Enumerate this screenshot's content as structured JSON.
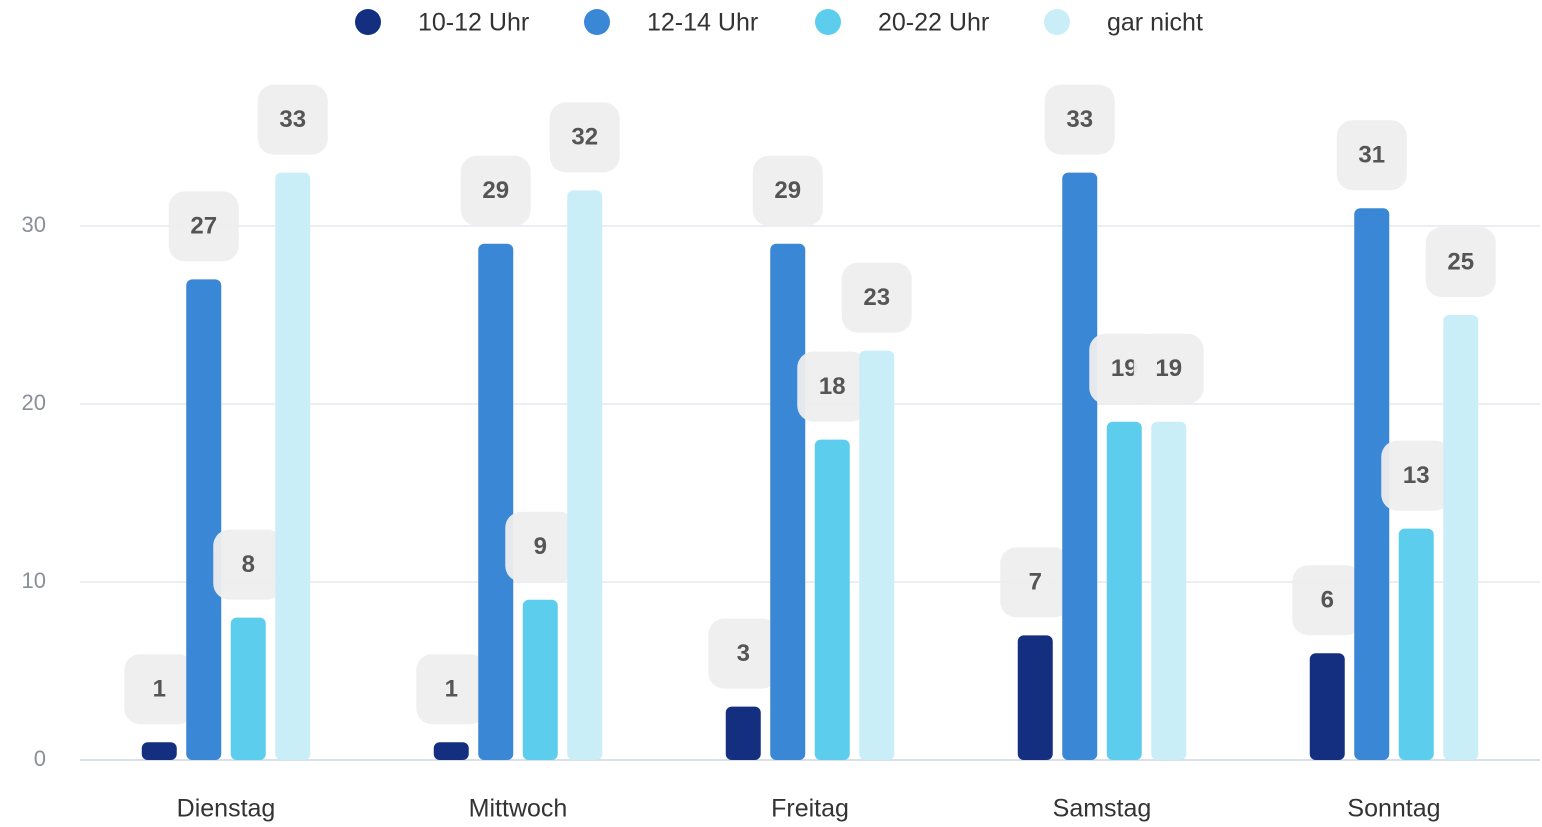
{
  "chart_data": {
    "type": "bar",
    "categories": [
      "Dienstag",
      "Mittwoch",
      "Freitag",
      "Samstag",
      "Sonntag"
    ],
    "series": [
      {
        "name": "10-12 Uhr",
        "color": "#142f7f",
        "values": [
          1,
          1,
          3,
          7,
          6
        ]
      },
      {
        "name": "12-14 Uhr",
        "color": "#3a87d6",
        "values": [
          27,
          29,
          29,
          33,
          31
        ]
      },
      {
        "name": "20-22 Uhr",
        "color": "#5dcdee",
        "values": [
          8,
          9,
          18,
          19,
          13
        ]
      },
      {
        "name": "gar nicht",
        "color": "#c9eef8",
        "values": [
          33,
          32,
          23,
          19,
          25
        ]
      }
    ],
    "ylim": [
      0,
      35
    ],
    "yticks": [
      0,
      10,
      20,
      30
    ],
    "grid": true,
    "legend": "top"
  }
}
